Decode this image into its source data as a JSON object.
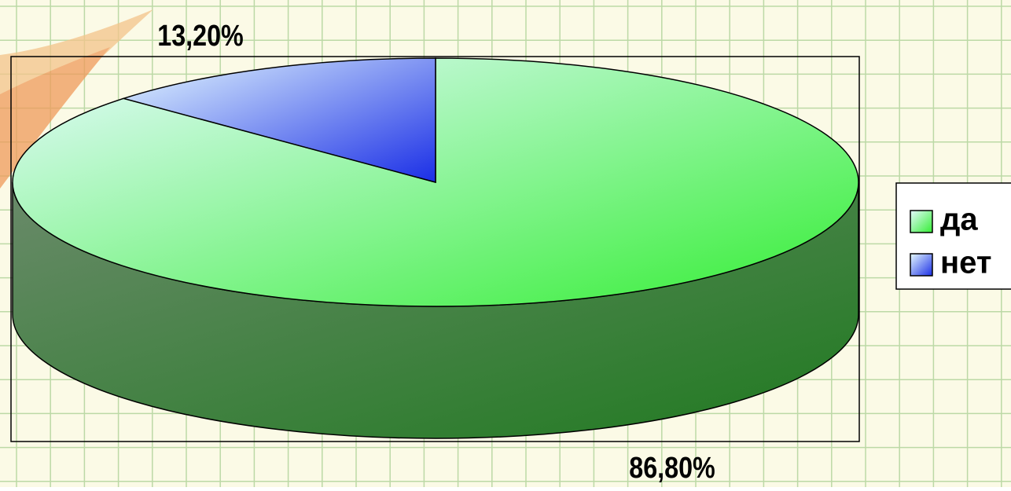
{
  "chart_data": {
    "type": "pie",
    "categories": [
      "да",
      "нет"
    ],
    "values": [
      86.8,
      13.2
    ],
    "value_labels": [
      "86,80%",
      "13,20%"
    ],
    "colors": [
      "#33ee33",
      "#1a2ee6"
    ],
    "legend": "right"
  }
}
